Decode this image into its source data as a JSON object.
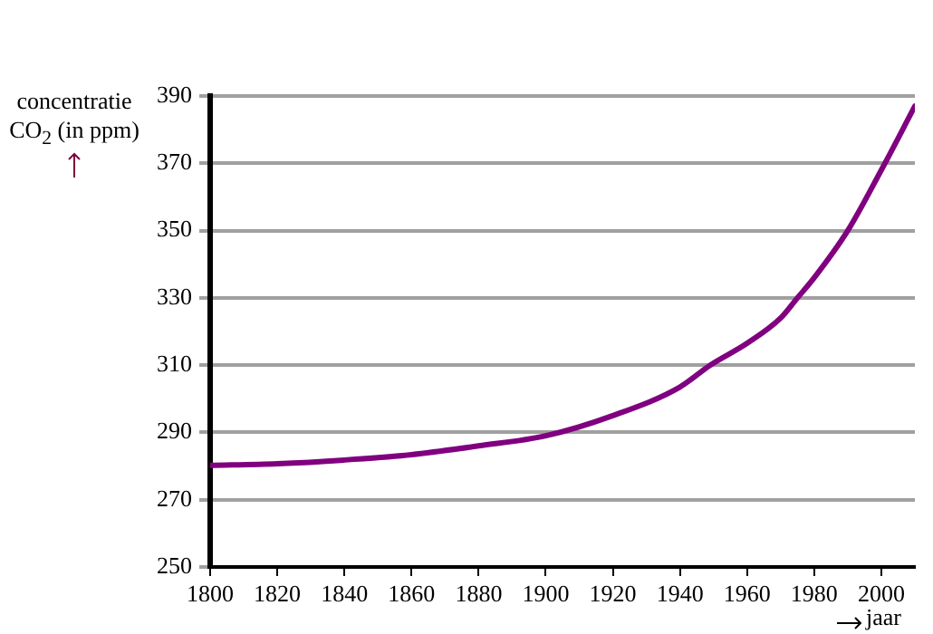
{
  "chart_data": {
    "type": "line",
    "ylabel": "concentratie CO$_{2}$ (in ppm)",
    "xlabel": "jaar",
    "x": [
      1800,
      1820,
      1840,
      1860,
      1880,
      1900,
      1920,
      1940,
      1949,
      1960,
      1970,
      1975,
      1980,
      1990,
      2000,
      2010
    ],
    "series": [
      {
        "color": "#800080",
        "values": [
          280.2,
          280.7,
          281.8,
          283.4,
          286,
          289,
          295,
          303.5,
          310,
          316.5,
          324,
          330,
          336,
          350,
          368,
          387
        ]
      }
    ],
    "xlim": [
      1800,
      2010
    ],
    "xticks": [
      1800,
      1820,
      1840,
      1860,
      1880,
      1900,
      1920,
      1940,
      1960,
      1980,
      2000
    ],
    "ylim": [
      250,
      390
    ],
    "yticks": [
      250,
      270,
      290,
      310,
      330,
      350,
      370,
      390
    ],
    "grid": "y",
    "marker": "none",
    "line_style": "solid",
    "legend": false
  }
}
